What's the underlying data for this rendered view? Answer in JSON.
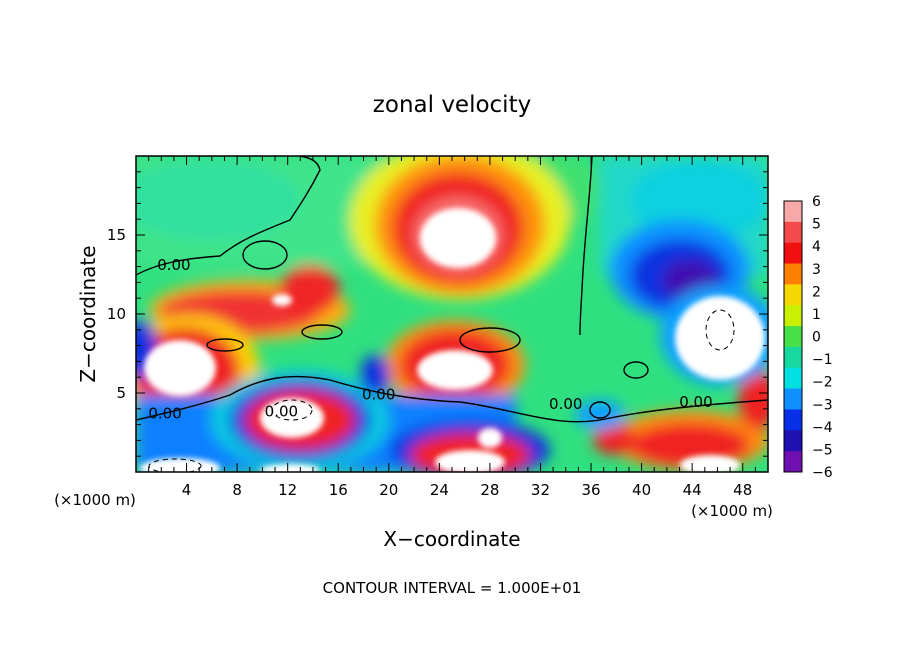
{
  "chart_data": {
    "type": "heatmap",
    "title": "zonal velocity",
    "xlabel": "X−coordinate",
    "ylabel": "Z−coordinate",
    "x_scale_note_left": "(×1000 m)",
    "x_scale_note_right": "(×1000 m)",
    "footer": "CONTOUR INTERVAL = 1.000E+01",
    "xlim": [
      0,
      50
    ],
    "ylim": [
      0,
      20
    ],
    "x_ticks": [
      "4",
      "8",
      "12",
      "16",
      "20",
      "24",
      "28",
      "32",
      "36",
      "40",
      "44",
      "48"
    ],
    "y_ticks": [
      "5",
      "10",
      "15"
    ],
    "colorbar": {
      "range": [
        -6,
        6
      ],
      "ticks": [
        "6",
        "5",
        "4",
        "3",
        "2",
        "1",
        "0",
        "−1",
        "−2",
        "−3",
        "−4",
        "−5",
        "−6"
      ],
      "colors": [
        "#f7a8a8",
        "#f44a4a",
        "#f01010",
        "#ff8000",
        "#f5d800",
        "#c8f000",
        "#48e048",
        "#18d8a0",
        "#00e0e0",
        "#1090ff",
        "#0830e8",
        "#2010b0",
        "#7010b0"
      ]
    },
    "contour_labels": [
      "0.00",
      "0.00",
      "0.00",
      "0.00",
      "0.00",
      "0.00"
    ],
    "grid": false,
    "legend": "right (colorbar)"
  }
}
